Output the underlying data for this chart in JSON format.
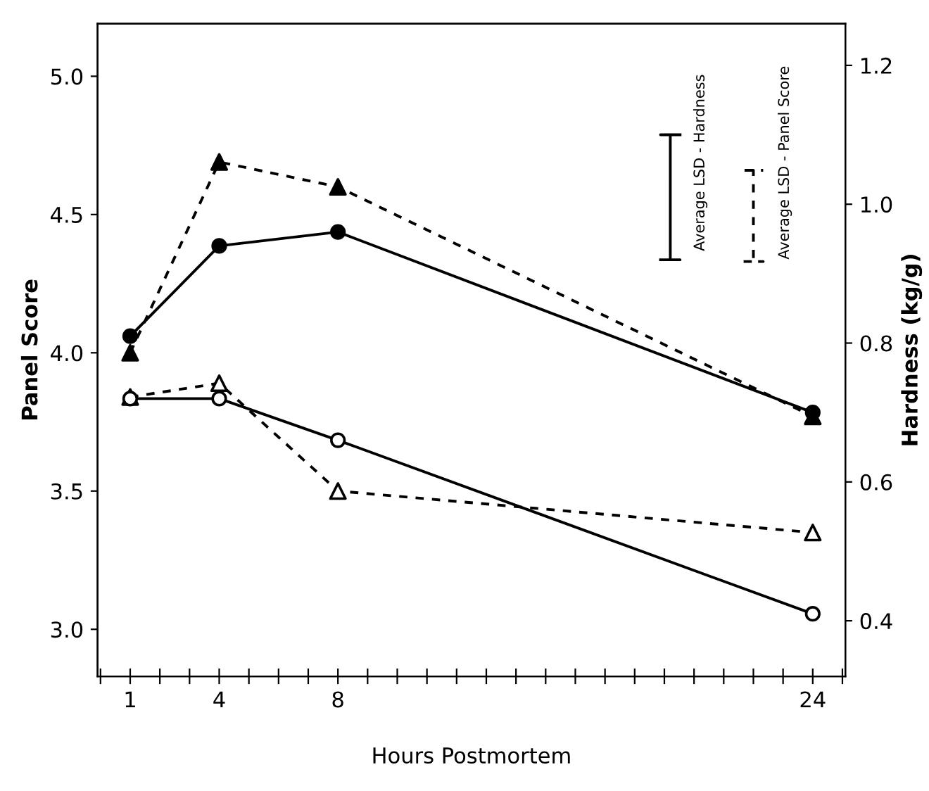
{
  "chart_data": {
    "type": "line",
    "xlabel": "Hours Postmortem",
    "ylabel": "Panel Score",
    "y2label": "Hardness (kg/g)",
    "xlim": [
      -0.1,
      25.1
    ],
    "xticks": [
      {
        "value": 0,
        "label": null
      },
      1,
      {
        "value": 2,
        "label": null
      },
      {
        "value": 3,
        "label": null
      },
      4,
      {
        "value": 5,
        "label": null
      },
      {
        "value": 6,
        "label": null
      },
      {
        "value": 7,
        "label": null
      },
      8,
      {
        "value": 9,
        "label": null
      },
      {
        "value": 10,
        "label": null
      },
      {
        "value": 11,
        "label": null
      },
      {
        "value": 12,
        "label": null
      },
      {
        "value": 13,
        "label": null
      },
      {
        "value": 14,
        "label": null
      },
      {
        "value": 15,
        "label": null
      },
      {
        "value": 16,
        "label": null
      },
      {
        "value": 17,
        "label": null
      },
      {
        "value": 18,
        "label": null
      },
      {
        "value": 19,
        "label": null
      },
      {
        "value": 20,
        "label": null
      },
      {
        "value": 21,
        "label": null
      },
      {
        "value": 22,
        "label": null
      },
      {
        "value": 23,
        "label": null
      },
      24,
      {
        "value": 25,
        "label": null
      }
    ],
    "ylim": [
      2.83,
      5.19
    ],
    "yticks": [
      {
        "value": 3.0,
        "label": "3.0"
      },
      3.5,
      {
        "value": 4.0,
        "label": "4.0"
      },
      4.5,
      {
        "value": 5.0,
        "label": "5.0"
      }
    ],
    "y2lim": [
      0.32,
      1.26
    ],
    "y2ticks": [
      0.4,
      0.6,
      0.8,
      {
        "value": 1.0,
        "label": "1.0"
      },
      1.2
    ],
    "x": [
      1,
      4,
      8,
      24
    ],
    "grid": false,
    "legend": false,
    "series": [
      {
        "color": "#000000",
        "axis": "y",
        "marker": "triangle",
        "line_style": "dashed",
        "values": [
          4.0,
          4.69,
          4.6,
          3.77
        ]
      },
      {
        "color": "#000000",
        "axis": "y2",
        "marker": "circle",
        "line_style": "solid",
        "values": [
          0.81,
          0.94,
          0.96,
          0.7
        ]
      },
      {
        "color": "#000000",
        "colors": [
          "#ffffff",
          "#ffffff",
          "#ffffff",
          "#ffffff"
        ],
        "axis": "y",
        "marker": "triangle",
        "line_style": "dashed",
        "values": [
          3.84,
          3.89,
          3.5,
          3.35
        ]
      },
      {
        "color": "#000000",
        "colors": [
          "#ffffff",
          "#ffffff",
          "#ffffff",
          "#ffffff"
        ],
        "axis": "y2",
        "marker": "circle",
        "line_style": "solid",
        "values": [
          0.72,
          0.72,
          0.66,
          0.41
        ]
      },
      {
        "color": "#000000",
        "axis": "y2",
        "marker": "none",
        "line_style": "solid",
        "x": [
          18.87,
          19.53,
          19.2,
          19.2,
          18.87,
          19.53
        ],
        "values": [
          0.92,
          0.92,
          0.92,
          1.1,
          1.1,
          1.1
        ]
      },
      {
        "color": "#000000",
        "axis": "y",
        "marker": "none",
        "line_style": "dashed",
        "x": [
          21.67,
          22.33,
          22.0,
          22.0,
          21.67,
          22.33
        ],
        "values": [
          4.33,
          4.33,
          4.33,
          4.66,
          4.66,
          4.66
        ]
      }
    ],
    "annotations": [
      "Average LSD - Hardness",
      "Average LSD - Panel Score"
    ]
  }
}
